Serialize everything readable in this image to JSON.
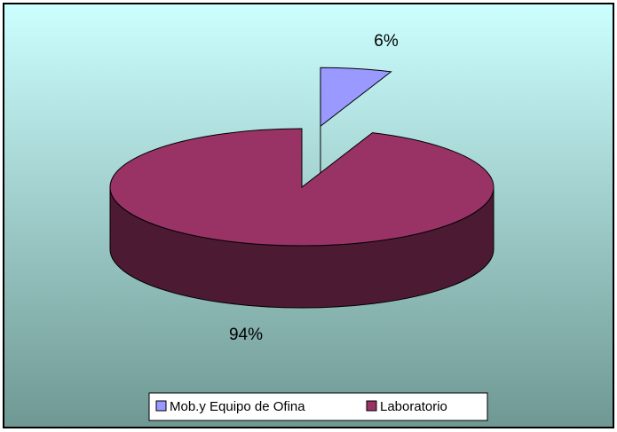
{
  "chart_data": {
    "type": "pie3d",
    "categories": [
      "Mob.y Equipo de Ofina",
      "Laboratorio"
    ],
    "values": [
      6,
      94
    ],
    "value_labels": [
      "6%",
      "94%"
    ],
    "colors": [
      "#9999ff",
      "#993366"
    ],
    "legend": "bottom"
  }
}
